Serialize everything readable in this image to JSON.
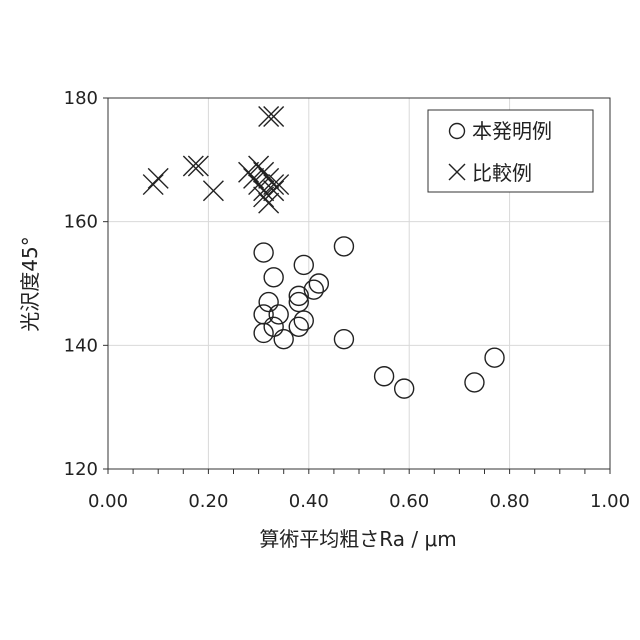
{
  "chart_data": {
    "type": "scatter",
    "title": "",
    "xlabel": "算術平均粗さRa / μm",
    "ylabel": "光沢度45°",
    "xlim": [
      0,
      1
    ],
    "ylim": [
      120,
      180
    ],
    "xticks": [
      "0.00",
      "0.20",
      "0.40",
      "0.60",
      "0.80",
      "1.00"
    ],
    "yticks": [
      "120",
      "140",
      "160",
      "180"
    ],
    "grid": true,
    "legend_position": "top-right",
    "series": [
      {
        "name": "本発明例",
        "marker": "circle",
        "points": [
          [
            0.31,
            155
          ],
          [
            0.33,
            151
          ],
          [
            0.39,
            153
          ],
          [
            0.47,
            156
          ],
          [
            0.32,
            147
          ],
          [
            0.31,
            145
          ],
          [
            0.34,
            145
          ],
          [
            0.33,
            143
          ],
          [
            0.31,
            142
          ],
          [
            0.35,
            141
          ],
          [
            0.38,
            148
          ],
          [
            0.38,
            147
          ],
          [
            0.41,
            149
          ],
          [
            0.42,
            150
          ],
          [
            0.39,
            144
          ],
          [
            0.38,
            143
          ],
          [
            0.47,
            141
          ],
          [
            0.55,
            135
          ],
          [
            0.59,
            133
          ],
          [
            0.73,
            134
          ],
          [
            0.77,
            138
          ]
        ]
      },
      {
        "name": "比較例",
        "marker": "x",
        "points": [
          [
            0.09,
            166
          ],
          [
            0.1,
            167
          ],
          [
            0.17,
            169
          ],
          [
            0.18,
            169
          ],
          [
            0.21,
            165
          ],
          [
            0.28,
            168
          ],
          [
            0.29,
            167
          ],
          [
            0.3,
            166
          ],
          [
            0.3,
            169
          ],
          [
            0.31,
            165
          ],
          [
            0.31,
            164
          ],
          [
            0.31,
            168
          ],
          [
            0.32,
            167
          ],
          [
            0.32,
            163
          ],
          [
            0.33,
            166
          ],
          [
            0.33,
            165
          ],
          [
            0.34,
            166
          ],
          [
            0.32,
            177
          ],
          [
            0.33,
            177
          ]
        ]
      }
    ]
  }
}
